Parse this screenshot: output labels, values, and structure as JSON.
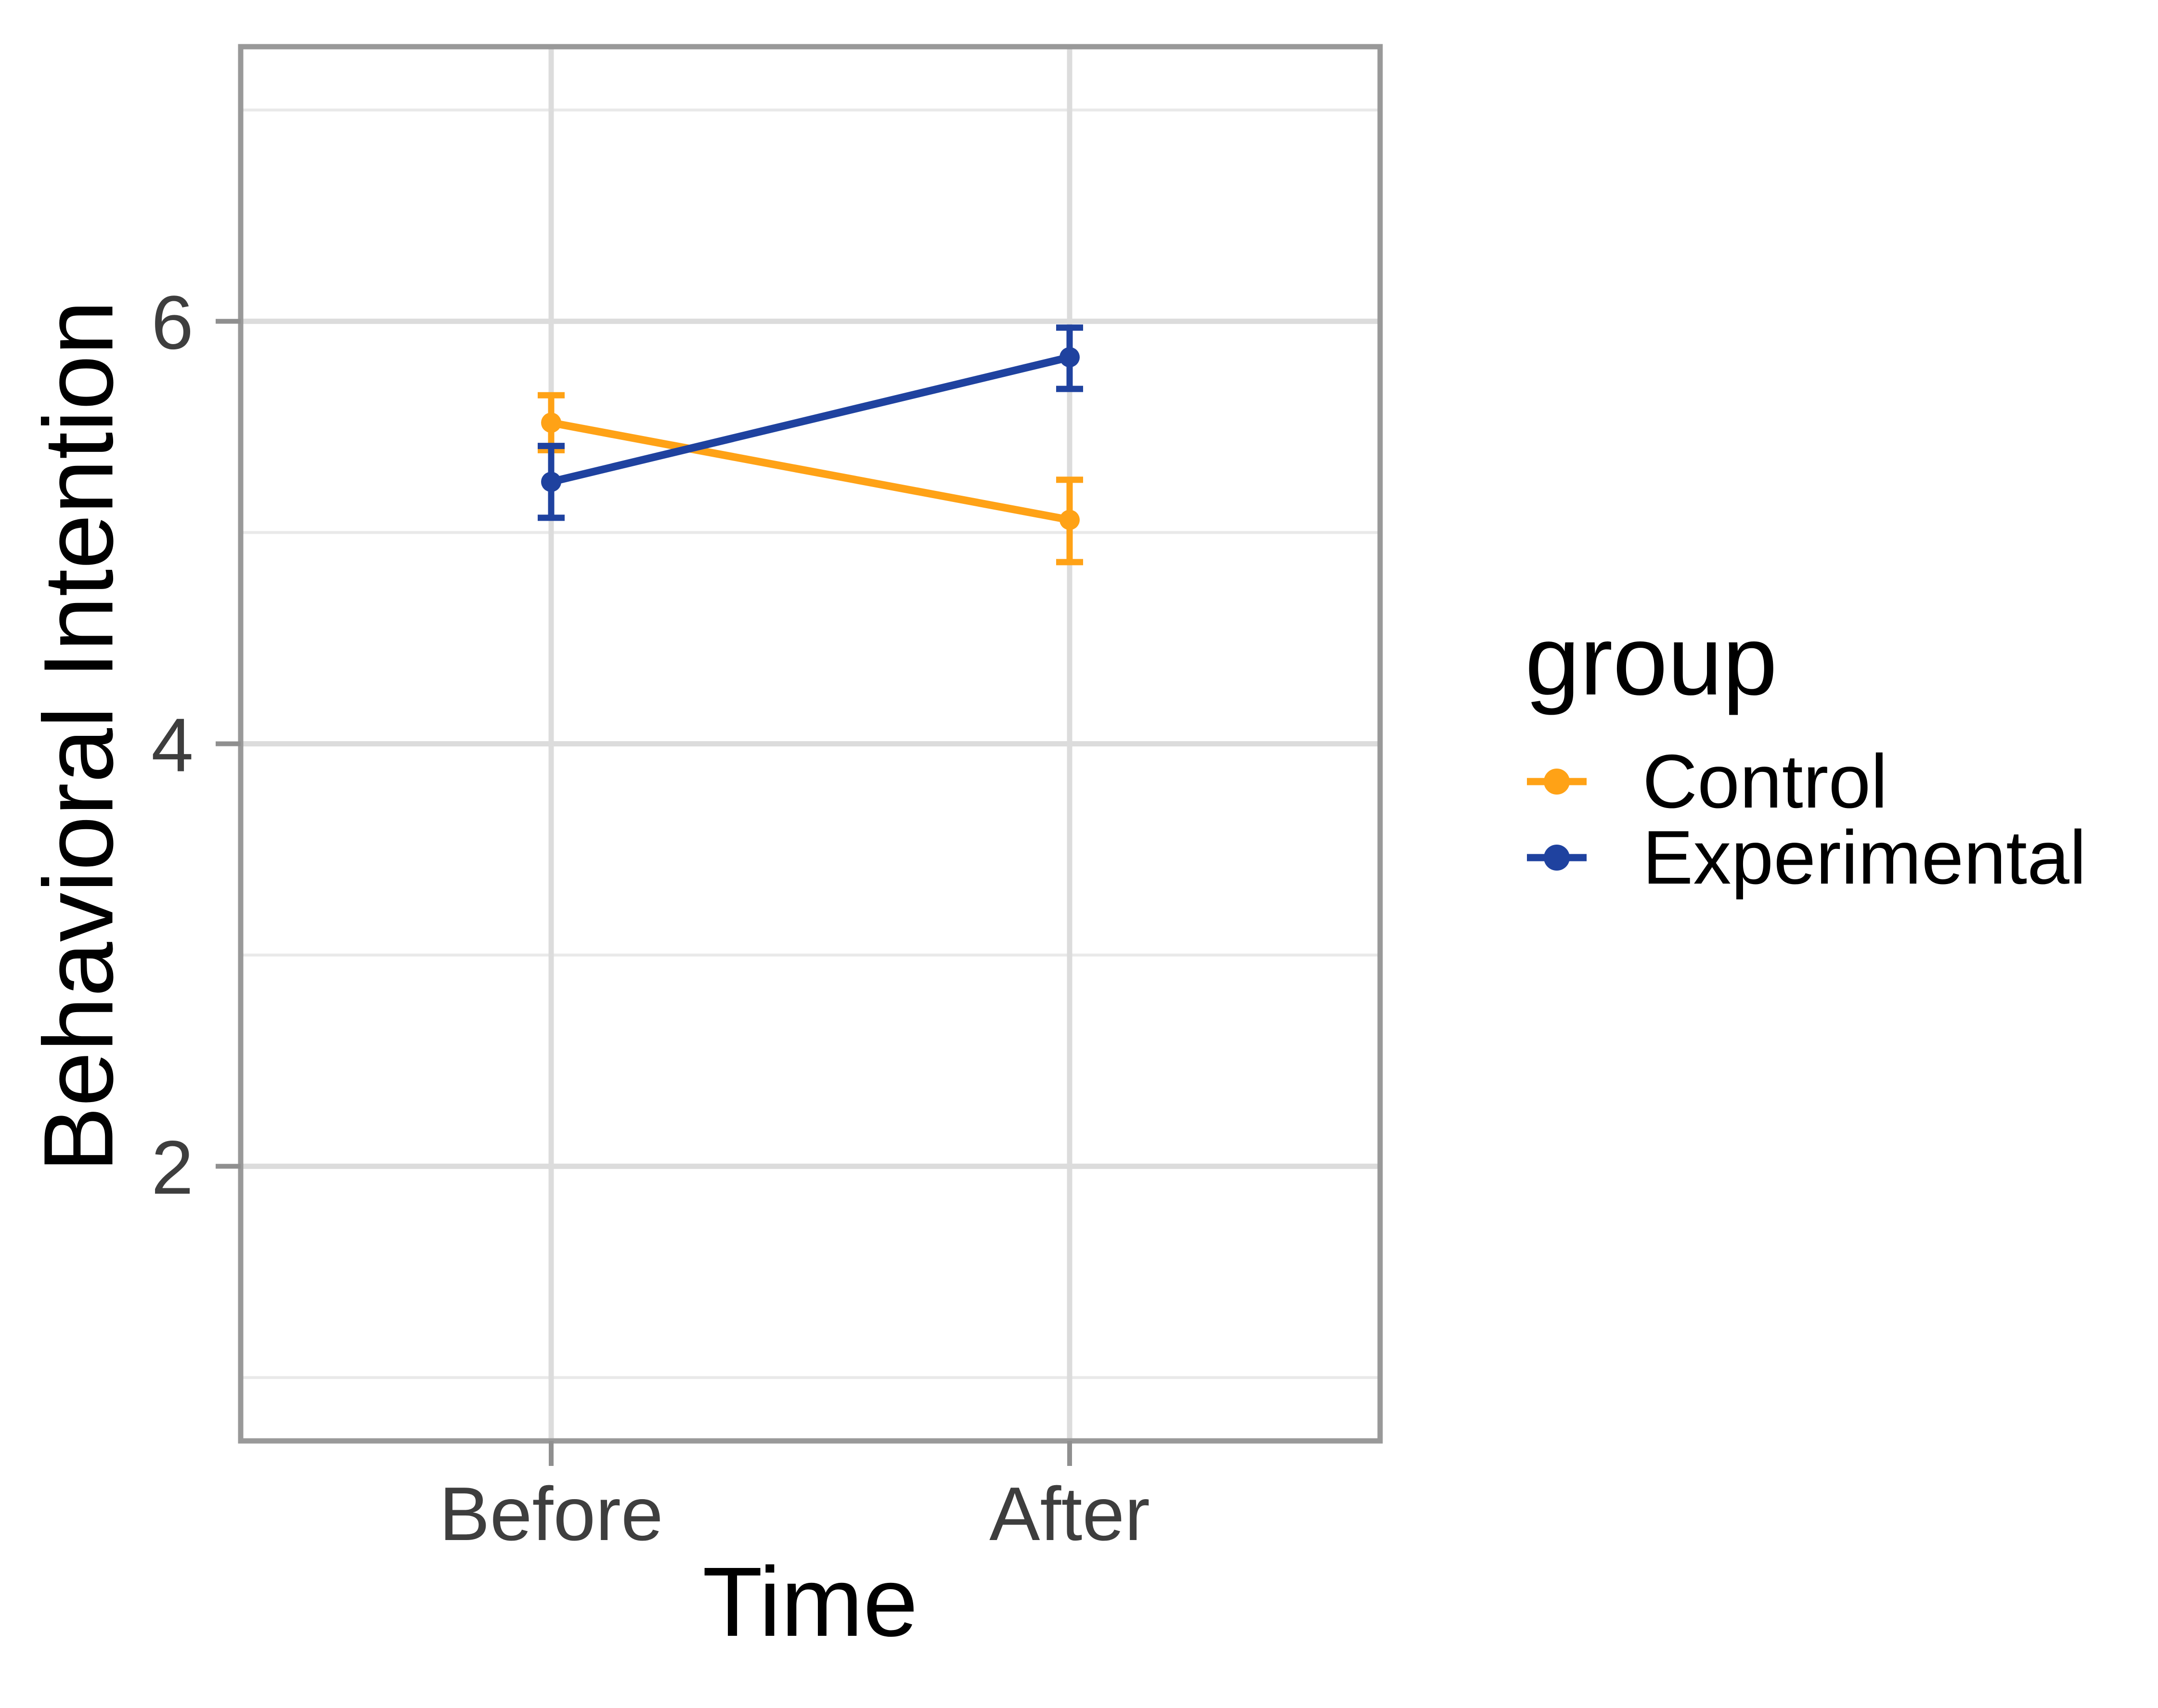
{
  "figure": {
    "background": "#FFFFFF"
  },
  "chart_data": {
    "type": "line",
    "title": "",
    "xlabel": "Time",
    "ylabel": "Behavioral Intention",
    "categories": [
      "Before",
      "After"
    ],
    "series": [
      {
        "name": "Control",
        "color": "#FFA216",
        "values": [
          5.52,
          5.06
        ],
        "ci_low": [
          5.39,
          4.86
        ],
        "ci_high": [
          5.65,
          5.25
        ]
      },
      {
        "name": "Experimental",
        "color": "#1F429F",
        "values": [
          5.24,
          5.83
        ],
        "ci_low": [
          5.07,
          5.68
        ],
        "ci_high": [
          5.41,
          5.97
        ]
      }
    ],
    "y_ticks": [
      2,
      4,
      6
    ],
    "y_minor_ticks": [
      1,
      3,
      5,
      7
    ],
    "ylim": [
      0.7,
      7.3
    ],
    "grid": true,
    "error_bars": true,
    "legend_position": "right",
    "legend_title": "group"
  },
  "axes": {
    "x_title": "Time",
    "y_title": "Behavioral Intention",
    "x_tick_labels": [
      "Before",
      "After"
    ],
    "y_tick_labels": [
      "2",
      "4",
      "6"
    ]
  },
  "legend": {
    "title": "group",
    "entries": [
      {
        "label": "Control",
        "color": "#FFA216"
      },
      {
        "label": "Experimental",
        "color": "#1F429F"
      }
    ]
  },
  "theme": {
    "background": "#FFFFFF",
    "panel_background": "#FFFFFF",
    "panel_border": "#999999",
    "grid_major": "#DCDCDC",
    "grid_minor": "#E9E9E9",
    "tick": "#8F8F8F",
    "tick_label": "#3E3E3E",
    "title_color": "#000000"
  }
}
